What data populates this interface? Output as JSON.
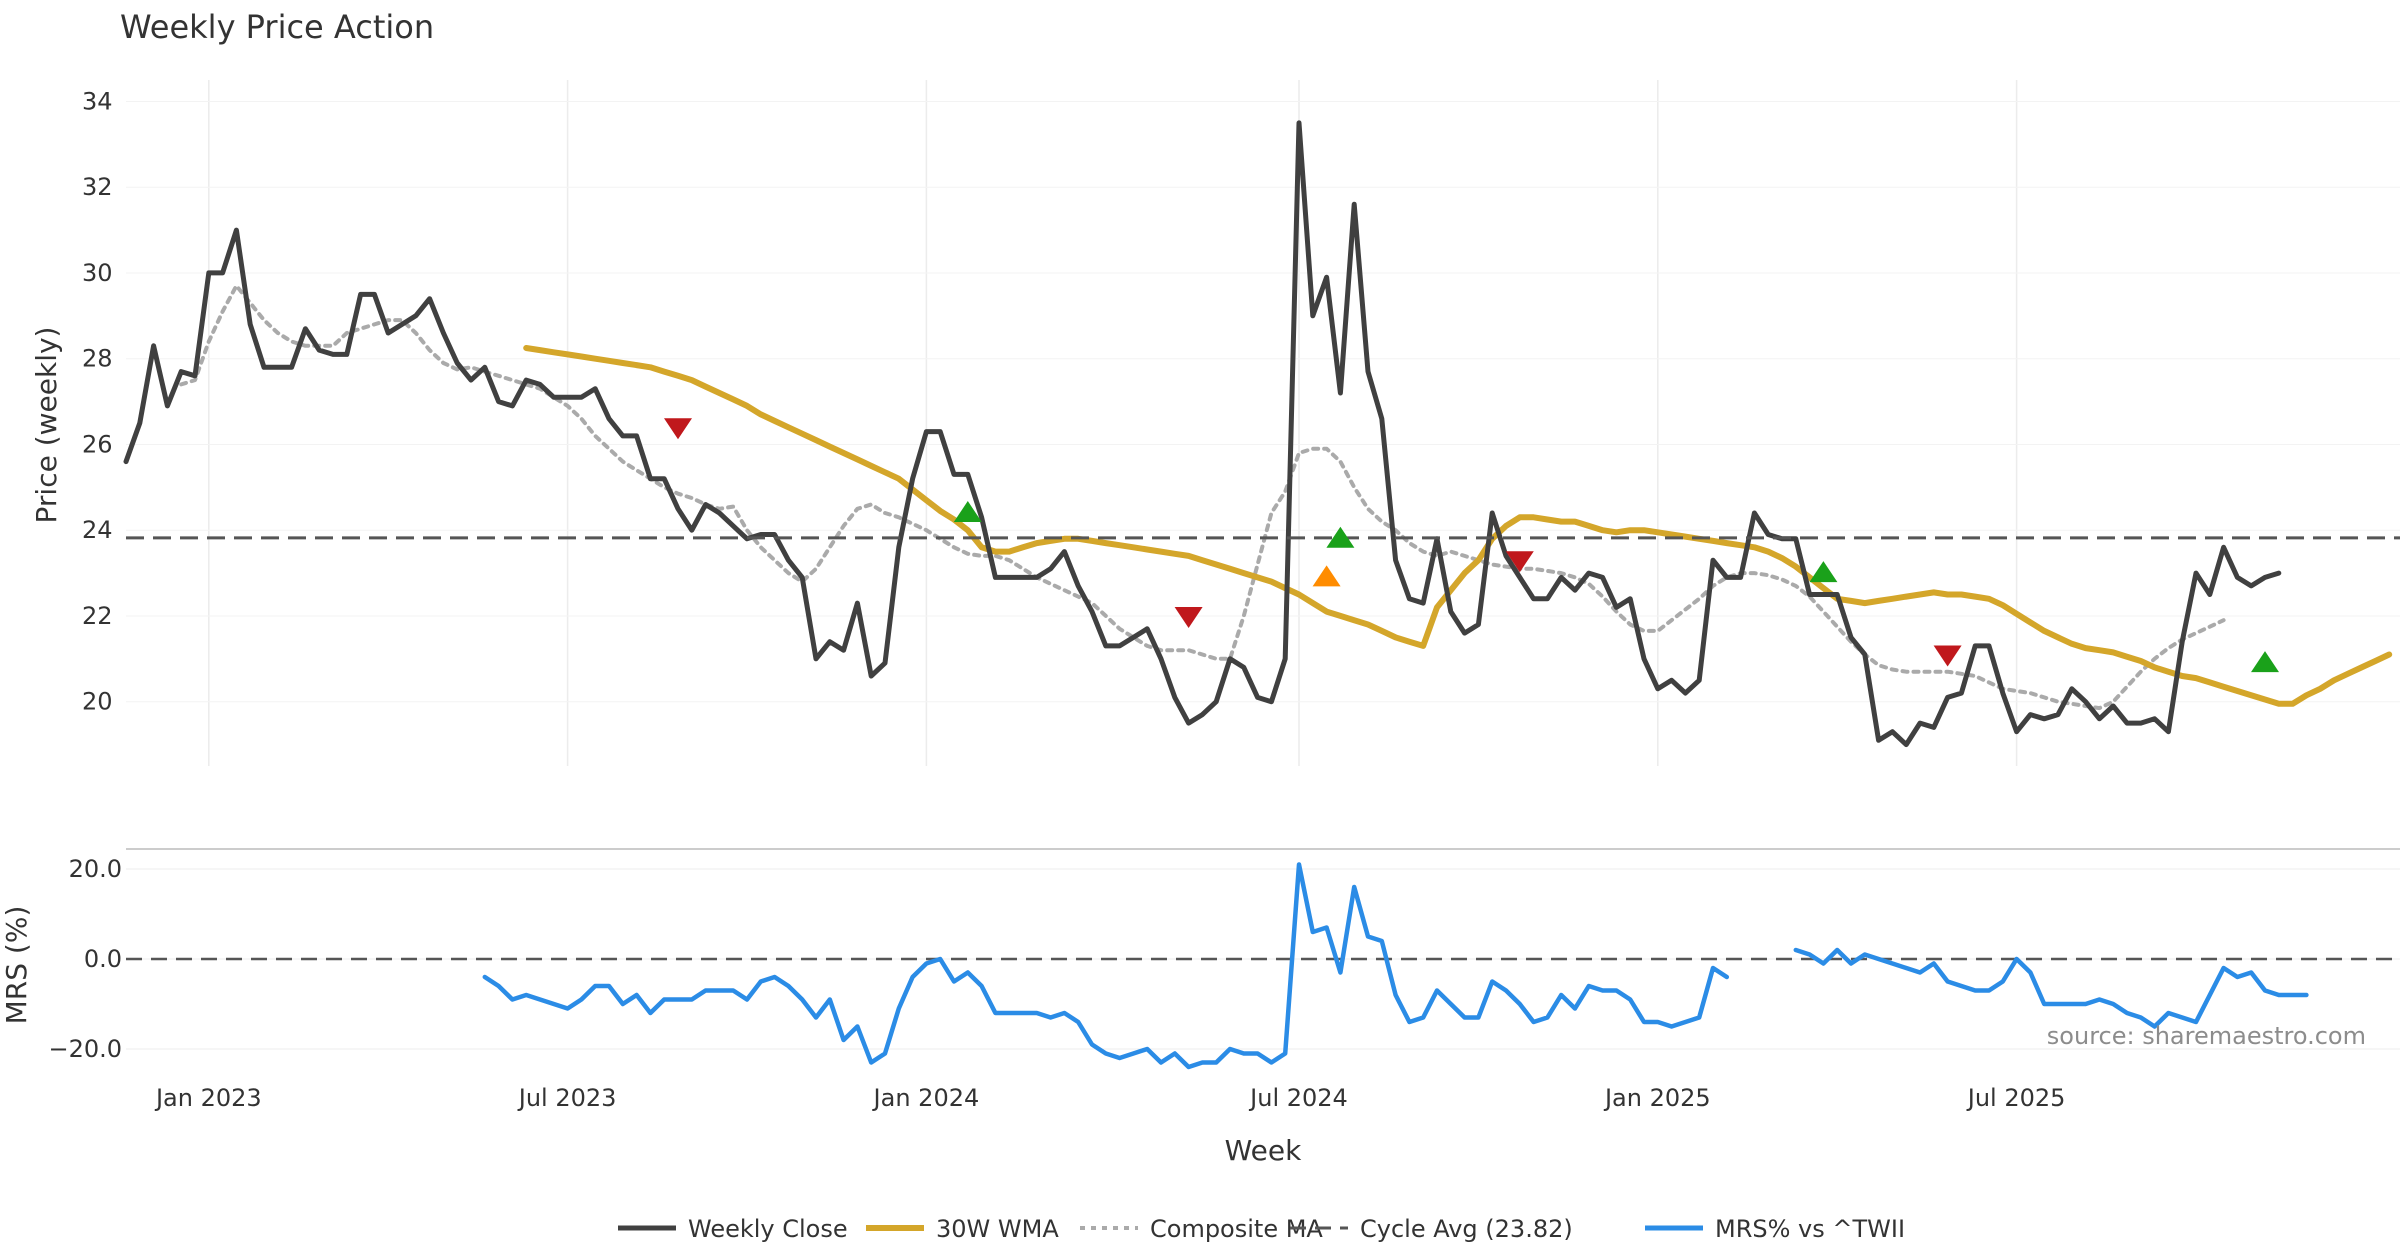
{
  "chart_data": {
    "type": "line",
    "title": "Weekly Price Action",
    "xlabel": "Week",
    "x_ticks": [
      "Jan 2023",
      "Jul 2023",
      "Jan 2024",
      "Jul 2024",
      "Jan 2025",
      "Jul 2025"
    ],
    "source": "source: sharemaestro.com",
    "price_panel": {
      "ylabel": "Price (weekly)",
      "ylim": [
        18.5,
        34.5
      ],
      "y_ticks": [
        "20",
        "22",
        "24",
        "26",
        "28",
        "30",
        "32",
        "34"
      ],
      "series": [
        {
          "name": "Weekly Close",
          "color": "#404040",
          "start_week": 0,
          "values": [
            25.6,
            26.5,
            28.3,
            26.9,
            27.7,
            27.6,
            30.0,
            30.0,
            31.0,
            28.8,
            27.8,
            27.8,
            27.8,
            28.7,
            28.2,
            28.1,
            28.1,
            29.5,
            29.5,
            28.6,
            28.8,
            29.0,
            29.4,
            28.6,
            27.9,
            27.5,
            27.8,
            27.0,
            26.9,
            27.5,
            27.4,
            27.1,
            27.1,
            27.1,
            27.3,
            26.6,
            26.2,
            26.2,
            25.2,
            25.2,
            24.5,
            24.0,
            24.6,
            24.4,
            24.1,
            23.8,
            23.9,
            23.9,
            23.3,
            22.9,
            21.0,
            21.4,
            21.2,
            22.3,
            20.6,
            20.9,
            23.6,
            25.2,
            26.3,
            26.3,
            25.3,
            25.3,
            24.3,
            22.9,
            22.9,
            22.9,
            22.9,
            23.1,
            23.5,
            22.7,
            22.1,
            21.3,
            21.3,
            21.5,
            21.7,
            21.0,
            20.1,
            19.5,
            19.7,
            20.0,
            21.0,
            20.8,
            20.1,
            20.0,
            21.0,
            33.5,
            29.0,
            29.9,
            27.2,
            31.6,
            27.7,
            26.6,
            23.3,
            22.4,
            22.3,
            23.8,
            22.1,
            21.6,
            21.8,
            24.4,
            23.4,
            22.9,
            22.4,
            22.4,
            22.9,
            22.6,
            23.0,
            22.9,
            22.2,
            22.4,
            21.0,
            20.3,
            20.5,
            20.2,
            20.5,
            23.3,
            22.9,
            22.9,
            24.4,
            23.9,
            23.8,
            23.8,
            22.5,
            22.5,
            22.5,
            21.5,
            21.1,
            19.1,
            19.3,
            19.0,
            19.5,
            19.4,
            20.1,
            20.2,
            21.3,
            21.3,
            20.2,
            19.3,
            19.7,
            19.6,
            19.7,
            20.3,
            20.0,
            19.6,
            19.9,
            19.5,
            19.5,
            19.6,
            19.3,
            21.4,
            23.0,
            22.5,
            23.6,
            22.9,
            22.7,
            22.9,
            23.0
          ]
        },
        {
          "name": "30W WMA",
          "color": "#d4a62a",
          "start_week": 29,
          "values": [
            28.25,
            28.2,
            28.15,
            28.1,
            28.05,
            28.0,
            27.95,
            27.9,
            27.85,
            27.8,
            27.7,
            27.6,
            27.5,
            27.35,
            27.2,
            27.05,
            26.9,
            26.7,
            26.55,
            26.4,
            26.25,
            26.1,
            25.95,
            25.8,
            25.65,
            25.5,
            25.35,
            25.2,
            24.95,
            24.7,
            24.45,
            24.25,
            24.0,
            23.6,
            23.5,
            23.5,
            23.6,
            23.7,
            23.75,
            23.8,
            23.8,
            23.75,
            23.7,
            23.65,
            23.6,
            23.55,
            23.5,
            23.45,
            23.4,
            23.3,
            23.2,
            23.1,
            23.0,
            22.9,
            22.8,
            22.65,
            22.5,
            22.3,
            22.1,
            22.0,
            21.9,
            21.8,
            21.65,
            21.5,
            21.4,
            21.3,
            22.2,
            22.6,
            23.0,
            23.3,
            23.8,
            24.1,
            24.3,
            24.3,
            24.25,
            24.2,
            24.2,
            24.1,
            24.0,
            23.95,
            24.0,
            24.0,
            23.95,
            23.9,
            23.85,
            23.8,
            23.75,
            23.7,
            23.65,
            23.6,
            23.5,
            23.35,
            23.15,
            22.9,
            22.65,
            22.4,
            22.35,
            22.3,
            22.35,
            22.4,
            22.45,
            22.5,
            22.55,
            22.5,
            22.5,
            22.45,
            22.4,
            22.25,
            22.05,
            21.85,
            21.65,
            21.5,
            21.35,
            21.25,
            21.2,
            21.15,
            21.05,
            20.95,
            20.8,
            20.7,
            20.6,
            20.55,
            20.45,
            20.35,
            20.25,
            20.15,
            20.05,
            19.95,
            19.95,
            20.15,
            20.3,
            20.5,
            20.65,
            20.8,
            20.95,
            21.1
          ]
        },
        {
          "name": "Composite MA",
          "color": "#aaaaaa",
          "start_week": 4,
          "values": [
            27.4,
            27.5,
            28.4,
            29.1,
            29.7,
            29.3,
            28.9,
            28.6,
            28.4,
            28.3,
            28.3,
            28.3,
            28.6,
            28.7,
            28.8,
            28.9,
            28.9,
            28.6,
            28.2,
            27.9,
            27.75,
            27.8,
            27.7,
            27.6,
            27.5,
            27.4,
            27.3,
            27.1,
            26.9,
            26.6,
            26.2,
            25.9,
            25.6,
            25.4,
            25.2,
            25.0,
            24.85,
            24.75,
            24.6,
            24.5,
            24.55,
            24.0,
            23.6,
            23.3,
            23.0,
            22.8,
            23.1,
            23.6,
            24.1,
            24.5,
            24.6,
            24.4,
            24.3,
            24.15,
            24.0,
            23.8,
            23.6,
            23.45,
            23.4,
            23.4,
            23.3,
            23.1,
            22.9,
            22.75,
            22.6,
            22.45,
            22.3,
            22.0,
            21.7,
            21.5,
            21.3,
            21.2,
            21.2,
            21.2,
            21.1,
            21.0,
            21.0,
            22.0,
            23.2,
            24.4,
            24.9,
            25.8,
            25.9,
            25.9,
            25.6,
            25.0,
            24.5,
            24.2,
            24.0,
            23.7,
            23.5,
            23.4,
            23.5,
            23.4,
            23.3,
            23.2,
            23.15,
            23.1,
            23.1,
            23.05,
            23.0,
            22.9,
            22.75,
            22.45,
            22.1,
            21.8,
            21.65,
            21.65,
            21.9,
            22.15,
            22.4,
            22.7,
            22.9,
            23.0,
            23.0,
            22.95,
            22.85,
            22.7,
            22.45,
            22.1,
            21.75,
            21.4,
            21.1,
            20.85,
            20.75,
            20.7,
            20.7,
            20.7,
            20.7,
            20.65,
            20.6,
            20.45,
            20.3,
            20.25,
            20.2,
            20.1,
            20.0,
            19.95,
            19.9,
            19.85,
            20.0,
            20.35,
            20.7,
            21.0,
            21.25,
            21.45,
            21.6,
            21.75,
            21.9
          ]
        },
        {
          "name": "Cycle Avg (23.82)",
          "color": "#555555",
          "value": 23.82
        }
      ],
      "signals": [
        {
          "week": 40,
          "value": 26.4,
          "direction": "down",
          "color": "#c0181c"
        },
        {
          "week": 61,
          "value": 24.4,
          "direction": "up",
          "color": "#1aa11a"
        },
        {
          "week": 77,
          "value": 22.0,
          "direction": "down",
          "color": "#c0181c"
        },
        {
          "week": 87,
          "value": 22.9,
          "direction": "up",
          "color": "#ff8c00"
        },
        {
          "week": 88,
          "value": 23.8,
          "direction": "up",
          "color": "#1aa11a"
        },
        {
          "week": 101,
          "value": 23.3,
          "direction": "down",
          "color": "#c0181c"
        },
        {
          "week": 123,
          "value": 23.0,
          "direction": "up",
          "color": "#1aa11a"
        },
        {
          "week": 132,
          "value": 21.1,
          "direction": "down",
          "color": "#c0181c"
        },
        {
          "week": 155,
          "value": 20.9,
          "direction": "up",
          "color": "#1aa11a"
        }
      ]
    },
    "mrs_panel": {
      "ylabel": "MRS (%)",
      "ylim": [
        -26,
        24
      ],
      "y_ticks": [
        "20.0",
        "0.0",
        "−20.0"
      ],
      "series": [
        {
          "name": "MRS% vs ^TWII",
          "color": "#2b8ce6",
          "segments": [
            {
              "start_week": 26,
              "values": [
                -4,
                -6,
                -9,
                -8,
                -9,
                -10,
                -11,
                -9,
                -6,
                -6,
                -10,
                -8,
                -12,
                -9,
                -9,
                -9,
                -7,
                -7,
                -7,
                -9,
                -5,
                -4,
                -6,
                -9,
                -13,
                -9,
                -18,
                -15,
                -23,
                -21,
                -11,
                -4,
                -1,
                0,
                -5,
                -3,
                -6,
                -12,
                -12,
                -12,
                -12,
                -13,
                -12,
                -14,
                -19,
                -21,
                -22,
                -21,
                -20,
                -23,
                -21,
                -24,
                -23,
                -23,
                -20,
                -21,
                -21,
                -23,
                -21,
                21,
                6,
                7,
                -3,
                16,
                5,
                4,
                -8,
                -14,
                -13,
                -7,
                -10,
                -13,
                -13,
                -5,
                -7,
                -10,
                -14,
                -13,
                -8,
                -11,
                -6,
                -7,
                -7,
                -9,
                -14,
                -14,
                -15,
                -14,
                -13,
                -2,
                -4
              ]
            },
            {
              "start_week": 121,
              "values": [
                2,
                1,
                -1,
                2,
                -1,
                1,
                0,
                -1,
                -2,
                -3,
                -1,
                -5,
                -6,
                -7,
                -7,
                -5,
                0,
                -3,
                -10,
                -10,
                -10,
                -10,
                -9,
                -10,
                -12,
                -13,
                -15,
                -12,
                -13,
                -14,
                -8,
                -2,
                -4,
                -3,
                -7,
                -8,
                -8,
                -8
              ]
            }
          ]
        },
        {
          "name": "zero line",
          "color": "#555555",
          "value": 0
        }
      ]
    },
    "legend": [
      {
        "label": "Weekly Close",
        "color": "#404040",
        "style": "solid"
      },
      {
        "label": "30W WMA",
        "color": "#d4a62a",
        "style": "solid-thick"
      },
      {
        "label": "Composite MA",
        "color": "#aaaaaa",
        "style": "dotted"
      },
      {
        "label": "Cycle Avg (23.82)",
        "color": "#555555",
        "style": "dashed"
      },
      {
        "label": "MRS% vs ^TWII",
        "color": "#2b8ce6",
        "style": "solid"
      }
    ]
  }
}
